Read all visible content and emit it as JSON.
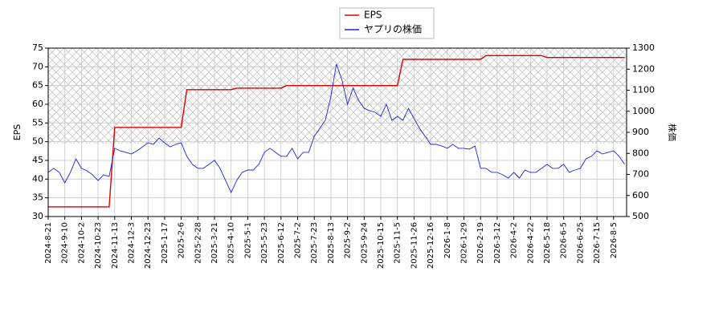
{
  "chart_data": {
    "type": "line",
    "legend": "upper center",
    "grid": true,
    "ylabel": "EPS",
    "y2label": "株価",
    "ylim": [
      30,
      75
    ],
    "yticks": [
      30,
      35,
      40,
      45,
      50,
      55,
      60,
      65,
      70,
      75
    ],
    "y2lim": [
      500,
      1300
    ],
    "y2ticks": [
      500,
      600,
      700,
      800,
      900,
      1000,
      1100,
      1200,
      1300
    ],
    "categories": [
      "2024-8-21",
      null,
      null,
      "2024-9-10",
      null,
      null,
      "2024-10-2",
      null,
      null,
      "2024-10-23",
      null,
      null,
      "2024-11-13",
      null,
      null,
      "2024-12-3",
      null,
      null,
      "2024-12-23",
      null,
      null,
      "2025-1-17",
      null,
      null,
      "2025-2-6",
      null,
      null,
      "2025-2-28",
      null,
      null,
      "2025-3-21",
      null,
      null,
      "2025-4-10",
      null,
      null,
      "2025-5-1",
      null,
      null,
      "2025-5-23",
      null,
      null,
      "2025-6-12",
      null,
      null,
      "2025-7-2",
      null,
      null,
      "2025-7-23",
      null,
      null,
      "2025-8-13",
      null,
      null,
      "2025-9-2",
      null,
      null,
      "2025-9-24",
      null,
      null,
      "2025-10-15",
      null,
      null,
      "2025-11-5",
      null,
      null,
      "2025-11-26",
      null,
      null,
      "2025-12-16",
      null,
      null,
      "2026-1-8",
      null,
      null,
      "2026-1-29",
      null,
      null,
      "2026-2-19",
      null,
      null,
      "2026-3-12",
      null,
      null,
      "2026-4-2",
      null,
      null,
      "2026-4-22",
      null,
      null,
      "2026-5-18",
      null,
      null,
      "2026-6-5",
      null,
      null,
      "2026-6-25",
      null,
      null,
      "2026-7-15",
      null,
      null,
      "2026-8-5",
      null,
      null
    ],
    "series": [
      {
        "name": "EPS",
        "color": "#dd0000",
        "axis": "y",
        "values": [
          32.6,
          32.6,
          32.6,
          32.6,
          32.6,
          32.6,
          32.6,
          32.6,
          32.6,
          32.6,
          32.6,
          32.6,
          53.8,
          53.8,
          53.8,
          53.8,
          53.8,
          53.8,
          53.8,
          53.8,
          53.8,
          53.8,
          53.8,
          53.8,
          53.8,
          63.9,
          63.9,
          63.9,
          63.9,
          63.9,
          63.9,
          63.9,
          63.9,
          63.9,
          64.3,
          64.3,
          64.3,
          64.3,
          64.3,
          64.3,
          64.3,
          64.3,
          64.3,
          65,
          65,
          65,
          65,
          65,
          65,
          65,
          65,
          65,
          65,
          65,
          65,
          65,
          65,
          65,
          65,
          65,
          65,
          65,
          65,
          65,
          72,
          72,
          72,
          72,
          72,
          72,
          72,
          72,
          72,
          72,
          72,
          72,
          72,
          72,
          72,
          73,
          73,
          73,
          73,
          73,
          73,
          73,
          73,
          73,
          73,
          73,
          72.5,
          72.5,
          72.5,
          72.5,
          72.5,
          72.5,
          72.5,
          72.5,
          72.5,
          72.5,
          72.5,
          72.5,
          72.5,
          72.5,
          72.5
        ]
      },
      {
        "name": "ヤプリの株価",
        "color": "#2222dd",
        "axis": "y2",
        "values": [
          710,
          729,
          710,
          660,
          710,
          774,
          729,
          717,
          698,
          671,
          698,
          690,
          824,
          812,
          805,
          797,
          812,
          831,
          850,
          843,
          873,
          850,
          831,
          843,
          850,
          786,
          748,
          729,
          729,
          748,
          767,
          729,
          671,
          614,
          671,
          710,
          721,
          721,
          748,
          805,
          824,
          805,
          786,
          786,
          824,
          774,
          805,
          805,
          881,
          919,
          957,
          1071,
          1224,
          1148,
          1033,
          1110,
          1052,
          1014,
          1003,
          995,
          976,
          1033,
          957,
          976,
          957,
          1014,
          965,
          919,
          881,
          843,
          843,
          835,
          824,
          843,
          824,
          824,
          820,
          835,
          729,
          729,
          710,
          710,
          698,
          683,
          710,
          683,
          721,
          710,
          710,
          729,
          748,
          729,
          729,
          748,
          710,
          721,
          729,
          774,
          786,
          812,
          797,
          805,
          812,
          786,
          748
        ]
      }
    ]
  }
}
